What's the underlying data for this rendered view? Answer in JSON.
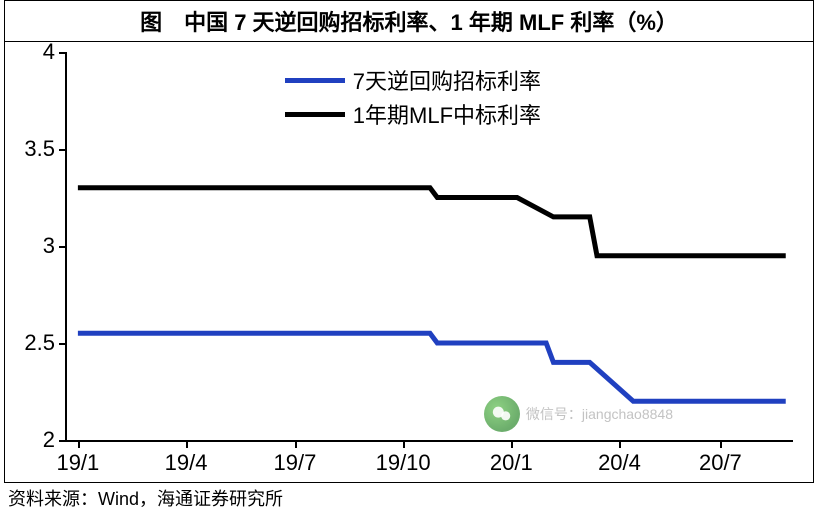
{
  "title": "图　中国 7 天逆回购招标利率、1 年期 MLF 利率（%）",
  "source": "资料来源：Wind，海通证券研究所",
  "chart": {
    "type": "line",
    "background_color": "#ffffff",
    "ylim": [
      2,
      4
    ],
    "ytick_step": 0.5,
    "yticks": [
      2,
      2.5,
      3,
      3.5,
      4
    ],
    "xticks": [
      "19/1",
      "19/4",
      "19/7",
      "19/10",
      "20/1",
      "20/4",
      "20/7"
    ],
    "x_positions_pct": [
      1.5,
      16.4,
      31.4,
      46.3,
      61.2,
      76.1,
      90
    ],
    "series": [
      {
        "name": "7天逆回购招标利率",
        "color": "#2040c0",
        "line_width": 5,
        "x_pct": [
          1.5,
          50,
          51,
          56,
          57,
          66,
          67,
          71,
          72,
          78,
          79,
          99
        ],
        "y_val": [
          2.55,
          2.55,
          2.5,
          2.5,
          2.5,
          2.5,
          2.4,
          2.4,
          2.4,
          2.2,
          2.2,
          2.2
        ]
      },
      {
        "name": "1年期MLF中标利率",
        "color": "#000000",
        "line_width": 5,
        "x_pct": [
          1.5,
          50,
          51,
          61,
          62,
          67,
          68,
          72,
          73,
          78,
          79,
          99
        ],
        "y_val": [
          3.3,
          3.3,
          3.25,
          3.25,
          3.25,
          3.15,
          3.15,
          3.15,
          2.95,
          2.95,
          2.95,
          2.95
        ]
      }
    ],
    "legend": {
      "items": [
        {
          "label": "7天逆回购招标利率",
          "color": "#2040c0"
        },
        {
          "label": "1年期MLF中标利率",
          "color": "#000000"
        }
      ]
    }
  },
  "watermark": {
    "text": "微信号：jiangchao8848"
  }
}
